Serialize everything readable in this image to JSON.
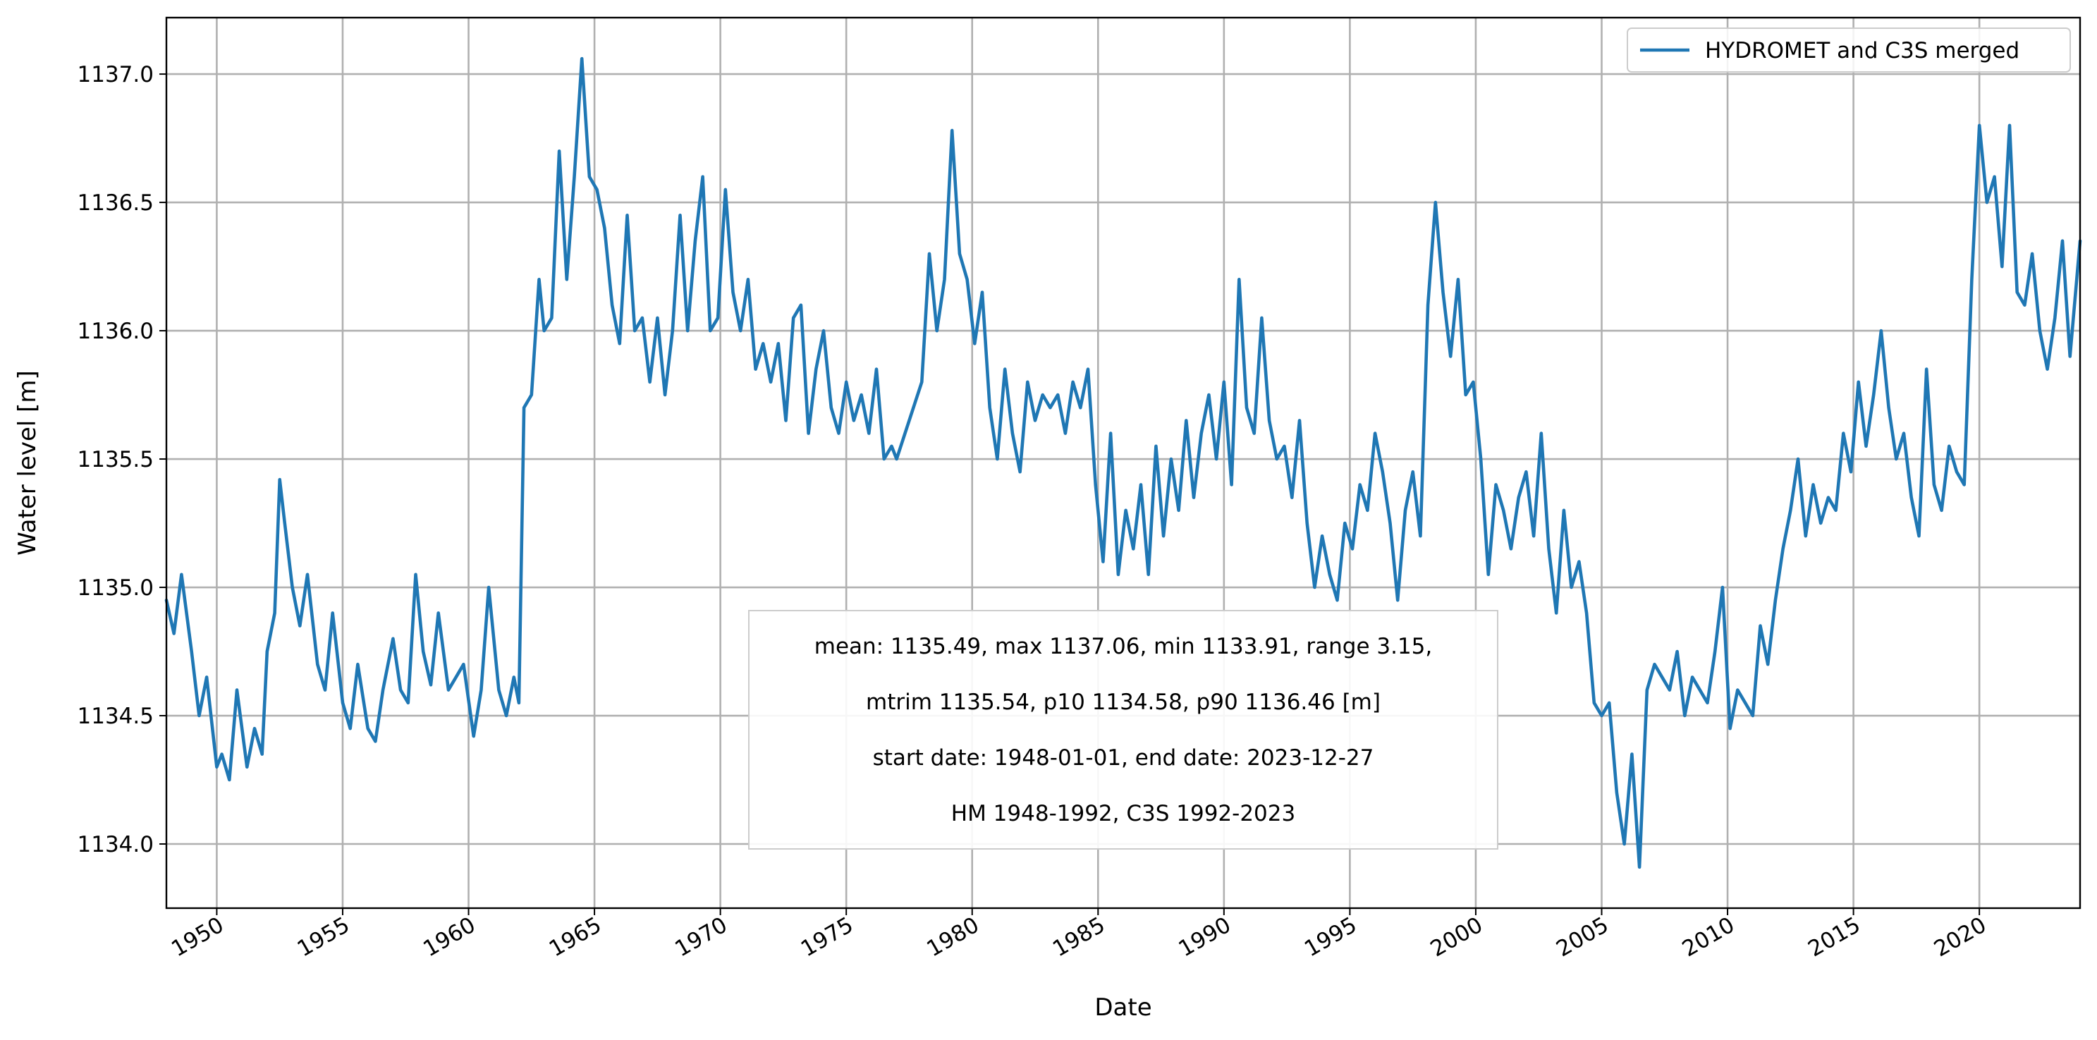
{
  "chart_data": {
    "type": "line",
    "title": "",
    "xlabel": "Date",
    "ylabel": "Water level [m]",
    "xlim": [
      1948.0,
      2024.0
    ],
    "ylim": [
      1133.75,
      1137.22
    ],
    "grid": true,
    "legend_position": "top-right",
    "x_ticks": [
      1950,
      1955,
      1960,
      1965,
      1970,
      1975,
      1980,
      1985,
      1990,
      1995,
      2000,
      2005,
      2010,
      2015,
      2020
    ],
    "x_tick_labels": [
      "1950",
      "1955",
      "1960",
      "1965",
      "1970",
      "1975",
      "1980",
      "1985",
      "1990",
      "1995",
      "2000",
      "2005",
      "2010",
      "2015",
      "2020"
    ],
    "y_ticks": [
      1134.0,
      1134.5,
      1135.0,
      1135.5,
      1136.0,
      1136.5,
      1137.0
    ],
    "y_tick_labels": [
      "1134.0",
      "1134.5",
      "1135.0",
      "1135.5",
      "1136.0",
      "1136.5",
      "1137.0"
    ],
    "series": [
      {
        "name": "HYDROMET and C3S merged",
        "color": "#1f77b4",
        "x": [
          1948.0,
          1948.3,
          1948.6,
          1949.0,
          1949.3,
          1949.6,
          1950.0,
          1950.2,
          1950.5,
          1950.8,
          1951.2,
          1951.5,
          1951.8,
          1952.0,
          1952.3,
          1952.5,
          1952.7,
          1953.0,
          1953.3,
          1953.6,
          1954.0,
          1954.3,
          1954.6,
          1955.0,
          1955.3,
          1955.6,
          1956.0,
          1956.3,
          1956.6,
          1957.0,
          1957.3,
          1957.6,
          1957.9,
          1958.2,
          1958.5,
          1958.8,
          1959.2,
          1959.5,
          1959.8,
          1960.2,
          1960.5,
          1960.8,
          1961.2,
          1961.5,
          1961.8,
          1962.0,
          1962.2,
          1962.5,
          1962.8,
          1963.0,
          1963.3,
          1963.6,
          1963.9,
          1964.2,
          1964.5,
          1964.8,
          1965.1,
          1965.4,
          1965.7,
          1966.0,
          1966.3,
          1966.6,
          1966.9,
          1967.2,
          1967.5,
          1967.8,
          1968.1,
          1968.4,
          1968.7,
          1969.0,
          1969.3,
          1969.6,
          1969.9,
          1970.2,
          1970.5,
          1970.8,
          1971.1,
          1971.4,
          1971.7,
          1972.0,
          1972.3,
          1972.6,
          1972.9,
          1973.2,
          1973.5,
          1973.8,
          1974.1,
          1974.4,
          1974.7,
          1975.0,
          1975.3,
          1975.6,
          1975.9,
          1976.2,
          1976.5,
          1976.8,
          1977.0,
          1978.0,
          1978.3,
          1978.6,
          1978.9,
          1979.2,
          1979.5,
          1979.8,
          1980.1,
          1980.4,
          1980.7,
          1981.0,
          1981.3,
          1981.6,
          1981.9,
          1982.2,
          1982.5,
          1982.8,
          1983.1,
          1983.4,
          1983.7,
          1984.0,
          1984.3,
          1984.6,
          1984.9,
          1985.2,
          1985.5,
          1985.8,
          1986.1,
          1986.4,
          1986.7,
          1987.0,
          1987.3,
          1987.6,
          1987.9,
          1988.2,
          1988.5,
          1988.8,
          1989.1,
          1989.4,
          1989.7,
          1990.0,
          1990.3,
          1990.6,
          1990.9,
          1991.2,
          1991.5,
          1991.8,
          1992.1,
          1992.4,
          1992.7,
          1993.0,
          1993.3,
          1993.6,
          1993.9,
          1994.2,
          1994.5,
          1994.8,
          1995.1,
          1995.4,
          1995.7,
          1996.0,
          1996.3,
          1996.6,
          1996.9,
          1997.2,
          1997.5,
          1997.8,
          1998.1,
          1998.4,
          1998.7,
          1999.0,
          1999.3,
          1999.6,
          1999.9,
          2000.2,
          2000.5,
          2000.8,
          2001.1,
          2001.4,
          2001.7,
          2002.0,
          2002.3,
          2002.6,
          2002.9,
          2003.2,
          2003.5,
          2003.8,
          2004.1,
          2004.4,
          2004.7,
          2005.0,
          2005.3,
          2005.6,
          2005.9,
          2006.2,
          2006.5,
          2006.8,
          2007.1,
          2007.4,
          2007.7,
          2008.0,
          2008.3,
          2008.6,
          2008.9,
          2009.2,
          2009.5,
          2009.8,
          2010.1,
          2010.4,
          2010.7,
          2011.0,
          2011.3,
          2011.6,
          2011.9,
          2012.2,
          2012.5,
          2012.8,
          2013.1,
          2013.4,
          2013.7,
          2014.0,
          2014.3,
          2014.6,
          2014.9,
          2015.2,
          2015.5,
          2015.8,
          2016.1,
          2016.4,
          2016.7,
          2017.0,
          2017.3,
          2017.6,
          2017.9,
          2018.2,
          2018.5,
          2018.8,
          2019.1,
          2019.4,
          2019.7,
          2020.0,
          2020.3,
          2020.6,
          2020.9,
          2021.2,
          2021.5,
          2021.8,
          2022.1,
          2022.4,
          2022.7,
          2023.0,
          2023.3,
          2023.6,
          2024.0
        ],
        "y": [
          1134.95,
          1134.82,
          1135.05,
          1134.75,
          1134.5,
          1134.65,
          1134.3,
          1134.35,
          1134.25,
          1134.6,
          1134.3,
          1134.45,
          1134.35,
          1134.75,
          1134.9,
          1135.42,
          1135.25,
          1135.0,
          1134.85,
          1135.05,
          1134.7,
          1134.6,
          1134.9,
          1134.55,
          1134.45,
          1134.7,
          1134.45,
          1134.4,
          1134.6,
          1134.8,
          1134.6,
          1134.55,
          1135.05,
          1134.75,
          1134.62,
          1134.9,
          1134.6,
          1134.65,
          1134.7,
          1134.42,
          1134.6,
          1135.0,
          1134.6,
          1134.5,
          1134.65,
          1134.55,
          1135.7,
          1135.75,
          1136.2,
          1136.0,
          1136.05,
          1136.7,
          1136.2,
          1136.6,
          1137.06,
          1136.6,
          1136.55,
          1136.4,
          1136.1,
          1135.95,
          1136.45,
          1136.0,
          1136.05,
          1135.8,
          1136.05,
          1135.75,
          1136.0,
          1136.45,
          1136.0,
          1136.35,
          1136.6,
          1136.0,
          1136.05,
          1136.55,
          1136.15,
          1136.0,
          1136.2,
          1135.85,
          1135.95,
          1135.8,
          1135.95,
          1135.65,
          1136.05,
          1136.1,
          1135.6,
          1135.85,
          1136.0,
          1135.7,
          1135.6,
          1135.8,
          1135.65,
          1135.75,
          1135.6,
          1135.85,
          1135.5,
          1135.55,
          1135.5,
          1135.8,
          1136.3,
          1136.0,
          1136.2,
          1136.78,
          1136.3,
          1136.2,
          1135.95,
          1136.15,
          1135.7,
          1135.5,
          1135.85,
          1135.6,
          1135.45,
          1135.8,
          1135.65,
          1135.75,
          1135.7,
          1135.75,
          1135.6,
          1135.8,
          1135.7,
          1135.85,
          1135.4,
          1135.1,
          1135.6,
          1135.05,
          1135.3,
          1135.15,
          1135.4,
          1135.05,
          1135.55,
          1135.2,
          1135.5,
          1135.3,
          1135.65,
          1135.35,
          1135.6,
          1135.75,
          1135.5,
          1135.8,
          1135.4,
          1136.2,
          1135.7,
          1135.6,
          1136.05,
          1135.65,
          1135.5,
          1135.55,
          1135.35,
          1135.65,
          1135.25,
          1135.0,
          1135.2,
          1135.05,
          1134.95,
          1135.25,
          1135.15,
          1135.4,
          1135.3,
          1135.6,
          1135.45,
          1135.25,
          1134.95,
          1135.3,
          1135.45,
          1135.2,
          1136.1,
          1136.5,
          1136.15,
          1135.9,
          1136.2,
          1135.75,
          1135.8,
          1135.5,
          1135.05,
          1135.4,
          1135.3,
          1135.15,
          1135.35,
          1135.45,
          1135.2,
          1135.6,
          1135.15,
          1134.9,
          1135.3,
          1135.0,
          1135.1,
          1134.9,
          1134.55,
          1134.5,
          1134.55,
          1134.2,
          1134.0,
          1134.35,
          1133.91,
          1134.6,
          1134.7,
          1134.65,
          1134.6,
          1134.75,
          1134.5,
          1134.65,
          1134.6,
          1134.55,
          1134.75,
          1135.0,
          1134.45,
          1134.6,
          1134.55,
          1134.5,
          1134.85,
          1134.7,
          1134.95,
          1135.15,
          1135.3,
          1135.5,
          1135.2,
          1135.4,
          1135.25,
          1135.35,
          1135.3,
          1135.6,
          1135.45,
          1135.8,
          1135.55,
          1135.75,
          1136.0,
          1135.7,
          1135.5,
          1135.6,
          1135.35,
          1135.2,
          1135.85,
          1135.4,
          1135.3,
          1135.55,
          1135.45,
          1135.4,
          1136.2,
          1136.8,
          1136.5,
          1136.6,
          1136.25,
          1136.8,
          1136.15,
          1136.1,
          1136.3,
          1136.0,
          1135.85,
          1136.05,
          1136.35,
          1135.9,
          1136.35
        ]
      }
    ],
    "annotation": {
      "lines": [
        "mean: 1135.49, max 1137.06, min 1133.91, range 3.15,",
        "mtrim 1135.54, p10 1134.58, p90 1136.46 [m]",
        "start date: 1948-01-01, end date: 2023-12-27",
        "HM 1948-1992, C3S 1992-2023"
      ]
    }
  }
}
